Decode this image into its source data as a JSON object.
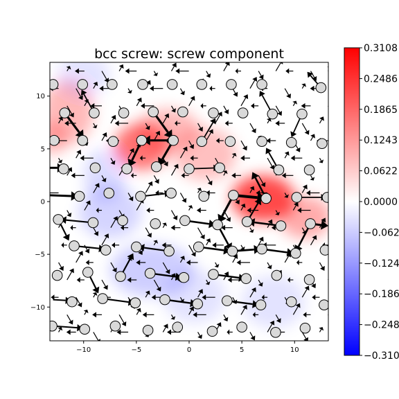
{
  "chart_data": {
    "type": "heatmap",
    "title": "bcc screw: screw component",
    "xlabel": "",
    "ylabel": "",
    "xlim": [
      -13.2,
      13.2
    ],
    "ylim": [
      -13.2,
      13.2
    ],
    "xticks": [
      {
        "value": -10,
        "label": "−10"
      },
      {
        "value": -5,
        "label": "−5"
      },
      {
        "value": 0,
        "label": "0"
      },
      {
        "value": 5,
        "label": "5"
      },
      {
        "value": 10,
        "label": "10"
      }
    ],
    "yticks": [
      {
        "value": -10,
        "label": "−10"
      },
      {
        "value": -5,
        "label": "−5"
      },
      {
        "value": 0,
        "label": "0"
      },
      {
        "value": 5,
        "label": "5"
      },
      {
        "value": 10,
        "label": "10"
      }
    ],
    "colormap": "bwr",
    "colors": {
      "low": "#0000ff",
      "mid": "#ffffff",
      "high": "#ff0000"
    },
    "colorbar": {
      "range": [
        -0.3108,
        0.3108
      ],
      "ticks": [
        {
          "value": 0.3108,
          "label": "0.3108"
        },
        {
          "value": 0.2486,
          "label": "0.2486"
        },
        {
          "value": 0.1865,
          "label": "0.1865"
        },
        {
          "value": 0.1243,
          "label": "0.1243"
        },
        {
          "value": 0.0622,
          "label": "0.0622"
        },
        {
          "value": 0.0,
          "label": "0.0000"
        },
        {
          "value": -0.0622,
          "label": "−0.0622"
        },
        {
          "value": -0.1243,
          "label": "−0.1243"
        },
        {
          "value": -0.1865,
          "label": "−0.1865"
        },
        {
          "value": -0.2486,
          "label": "−0.2486"
        },
        {
          "value": -0.3108,
          "label": "−0.3108"
        }
      ]
    },
    "field_blobs": [
      {
        "x": -4.5,
        "y": 5.2,
        "amp": 0.2,
        "sx": 2.6,
        "sy": 2.2
      },
      {
        "x": -2.0,
        "y": 6.8,
        "amp": 0.1,
        "sx": 3.0,
        "sy": 2.0
      },
      {
        "x": 7.0,
        "y": 0.3,
        "amp": 0.26,
        "sx": 3.0,
        "sy": 2.2
      },
      {
        "x": 11.0,
        "y": -1.5,
        "amp": 0.12,
        "sx": 2.5,
        "sy": 2.0
      },
      {
        "x": 1.5,
        "y": 4.5,
        "amp": 0.09,
        "sx": 3.0,
        "sy": 2.5
      },
      {
        "x": -11.5,
        "y": 8.5,
        "amp": 0.1,
        "sx": 2.5,
        "sy": 3.0
      },
      {
        "x": -13.0,
        "y": 6.0,
        "amp": 0.1,
        "sx": 1.5,
        "sy": 1.5
      },
      {
        "x": -7.5,
        "y": -1.0,
        "amp": -0.06,
        "sx": 3.0,
        "sy": 2.5
      },
      {
        "x": -3.5,
        "y": -6.5,
        "amp": -0.07,
        "sx": 4.0,
        "sy": 2.5
      },
      {
        "x": -8.0,
        "y": 2.5,
        "amp": -0.05,
        "sx": 2.0,
        "sy": 2.5
      },
      {
        "x": 0.5,
        "y": -9.0,
        "amp": -0.04,
        "sx": 3.0,
        "sy": 2.5
      },
      {
        "x": 8.0,
        "y": -9.5,
        "amp": -0.04,
        "sx": 3.0,
        "sy": 2.5
      },
      {
        "x": -10.0,
        "y": 12.0,
        "amp": -0.04,
        "sx": 2.5,
        "sy": 2.0
      }
    ],
    "atoms": [
      {
        "x": -12.9,
        "y": 11.1
      },
      {
        "x": -10.1,
        "y": 11.1
      },
      {
        "x": -7.3,
        "y": 11.1
      },
      {
        "x": -4.4,
        "y": 11.1
      },
      {
        "x": -1.6,
        "y": 11.1
      },
      {
        "x": 1.2,
        "y": 11.1
      },
      {
        "x": 4.0,
        "y": 11.1
      },
      {
        "x": 6.9,
        "y": 11.1
      },
      {
        "x": 12.5,
        "y": 10.8
      },
      {
        "x": -11.8,
        "y": 8.4
      },
      {
        "x": -9.0,
        "y": 8.4
      },
      {
        "x": -6.2,
        "y": 8.4
      },
      {
        "x": -3.4,
        "y": 8.5
      },
      {
        "x": -0.6,
        "y": 8.5
      },
      {
        "x": 2.3,
        "y": 8.4
      },
      {
        "x": 5.1,
        "y": 8.4
      },
      {
        "x": 7.9,
        "y": 8.3
      },
      {
        "x": 10.7,
        "y": 8.3
      },
      {
        "x": -12.8,
        "y": 5.8
      },
      {
        "x": -10.1,
        "y": 5.8
      },
      {
        "x": -7.2,
        "y": 5.7
      },
      {
        "x": -4.5,
        "y": 5.8
      },
      {
        "x": -1.5,
        "y": 5.8
      },
      {
        "x": 1.2,
        "y": 5.7
      },
      {
        "x": 3.9,
        "y": 5.7
      },
      {
        "x": 6.9,
        "y": 5.7
      },
      {
        "x": 9.7,
        "y": 5.6
      },
      {
        "x": 12.6,
        "y": 5.5
      },
      {
        "x": -11.9,
        "y": 3.1
      },
      {
        "x": -8.9,
        "y": 3.2
      },
      {
        "x": -5.9,
        "y": 3.1
      },
      {
        "x": -3.1,
        "y": 3.3
      },
      {
        "x": 0.0,
        "y": 3.1
      },
      {
        "x": 2.9,
        "y": 3.2
      },
      {
        "x": 8.5,
        "y": 3.0
      },
      {
        "x": 11.4,
        "y": 3.0
      },
      {
        "x": -10.4,
        "y": 0.5
      },
      {
        "x": -7.6,
        "y": 0.8
      },
      {
        "x": -4.6,
        "y": 0.5
      },
      {
        "x": -1.7,
        "y": 0.8
      },
      {
        "x": 1.4,
        "y": 0.5
      },
      {
        "x": 4.2,
        "y": 0.6
      },
      {
        "x": 7.3,
        "y": 0.3
      },
      {
        "x": 10.2,
        "y": 0.4
      },
      {
        "x": 13.1,
        "y": 0.4
      },
      {
        "x": -12.4,
        "y": -1.7
      },
      {
        "x": -9.1,
        "y": -2.0
      },
      {
        "x": -6.3,
        "y": -1.8
      },
      {
        "x": -3.2,
        "y": -2.1
      },
      {
        "x": -0.4,
        "y": -1.8
      },
      {
        "x": 2.7,
        "y": -2.2
      },
      {
        "x": 5.5,
        "y": -1.9
      },
      {
        "x": 8.7,
        "y": -2.3
      },
      {
        "x": 11.5,
        "y": -2.1
      },
      {
        "x": -10.9,
        "y": -4.2
      },
      {
        "x": -7.9,
        "y": -4.6
      },
      {
        "x": -5.0,
        "y": -4.3
      },
      {
        "x": -1.9,
        "y": -4.7
      },
      {
        "x": 0.9,
        "y": -4.3
      },
      {
        "x": 4.1,
        "y": -4.7
      },
      {
        "x": 6.9,
        "y": -4.5
      },
      {
        "x": 10.1,
        "y": -4.9
      },
      {
        "x": 12.9,
        "y": -4.6
      },
      {
        "x": -12.5,
        "y": -7.0
      },
      {
        "x": -9.6,
        "y": -6.7
      },
      {
        "x": -6.5,
        "y": -7.1
      },
      {
        "x": -3.7,
        "y": -6.8
      },
      {
        "x": -0.5,
        "y": -7.2
      },
      {
        "x": 2.3,
        "y": -6.9
      },
      {
        "x": 5.4,
        "y": -7.3
      },
      {
        "x": 8.3,
        "y": -7.0
      },
      {
        "x": 11.4,
        "y": -7.4
      },
      {
        "x": -11.1,
        "y": -9.5
      },
      {
        "x": -8.2,
        "y": -9.2
      },
      {
        "x": -5.1,
        "y": -9.6
      },
      {
        "x": -2.3,
        "y": -9.3
      },
      {
        "x": 0.8,
        "y": -9.7
      },
      {
        "x": 3.6,
        "y": -9.4
      },
      {
        "x": 6.8,
        "y": -9.8
      },
      {
        "x": 9.7,
        "y": -9.5
      },
      {
        "x": 12.8,
        "y": -9.8
      },
      {
        "x": -13.0,
        "y": -11.8
      },
      {
        "x": -9.9,
        "y": -12.1
      },
      {
        "x": -7.0,
        "y": -11.8
      },
      {
        "x": -3.9,
        "y": -12.2
      },
      {
        "x": -1.1,
        "y": -11.9
      },
      {
        "x": 2.2,
        "y": -12.3
      },
      {
        "x": 5.0,
        "y": -11.9
      },
      {
        "x": 8.2,
        "y": -12.4
      },
      {
        "x": 11.0,
        "y": -12.0
      }
    ],
    "arrows": [
      {
        "x": -11.8,
        "y": 8.4,
        "dx": 1.8,
        "dy": -2.4,
        "w": 3.2
      },
      {
        "x": -3.4,
        "y": 8.5,
        "dx": 1.8,
        "dy": -2.5,
        "w": 3.2
      },
      {
        "x": -1.5,
        "y": 5.8,
        "dx": -2.9,
        "dy": 0,
        "w": 3.2
      },
      {
        "x": -1.5,
        "y": 5.8,
        "dx": -1.4,
        "dy": -2.4,
        "w": 3.2
      },
      {
        "x": -4.5,
        "y": 5.8,
        "dx": -1.2,
        "dy": -2.5,
        "w": 3.0
      },
      {
        "x": 4.2,
        "y": 0.6,
        "dx": 3.1,
        "dy": -0.3,
        "w": 4.0
      },
      {
        "x": 7.3,
        "y": 0.3,
        "dx": -1.3,
        "dy": 2.5,
        "w": 2.6
      },
      {
        "x": 4.2,
        "y": 0.6,
        "dx": -1.4,
        "dy": -2.6,
        "w": 3.2
      },
      {
        "x": 2.7,
        "y": -2.2,
        "dx": 1.3,
        "dy": -2.4,
        "w": 2.6
      },
      {
        "x": 11.5,
        "y": -2.1,
        "dx": -1.4,
        "dy": -2.7,
        "w": 2.6
      },
      {
        "x": 11.5,
        "y": -2.1,
        "dx": 1.7,
        "dy": -0.2,
        "w": 3.0
      },
      {
        "x": -13.2,
        "y": 3.2,
        "dx": 1.3,
        "dy": 0,
        "w": 3.0
      },
      {
        "x": -13.2,
        "y": 0.6,
        "dx": 2.7,
        "dy": -0.1,
        "w": 3.0
      },
      {
        "x": 4.1,
        "y": -4.7,
        "dx": 2.7,
        "dy": 0.2,
        "w": 2.8
      },
      {
        "x": 8.7,
        "y": -2.3,
        "dx": -3.1,
        "dy": 0.4,
        "w": 2.6
      },
      {
        "x": -0.4,
        "y": -1.8,
        "dx": 2.9,
        "dy": -0.4,
        "w": 2.6
      },
      {
        "x": 0.9,
        "y": -4.3,
        "dx": 3.0,
        "dy": -0.4,
        "w": 2.6
      },
      {
        "x": 6.9,
        "y": -4.5,
        "dx": 3.0,
        "dy": -0.4,
        "w": 2.6
      },
      {
        "x": -3.7,
        "y": -6.8,
        "dx": 3.0,
        "dy": -0.4,
        "w": 2.4
      },
      {
        "x": 2.3,
        "y": -6.9,
        "dx": 3.0,
        "dy": -0.4,
        "w": 2.4
      },
      {
        "x": -2.3,
        "y": -9.3,
        "dx": 3.0,
        "dy": -0.4,
        "w": 2.4
      },
      {
        "x": 3.6,
        "y": -9.4,
        "dx": 3.0,
        "dy": -0.4,
        "w": 2.4
      },
      {
        "x": -8.2,
        "y": -9.2,
        "dx": 3.0,
        "dy": -0.4,
        "w": 2.2
      },
      {
        "x": -9.1,
        "y": -2.0,
        "dx": -3.1,
        "dy": 0.3,
        "w": 2.2
      },
      {
        "x": -10.9,
        "y": -4.2,
        "dx": 2.9,
        "dy": -0.3,
        "w": 2.2
      },
      {
        "x": -1.9,
        "y": -4.7,
        "dx": -2.9,
        "dy": 0.4,
        "w": 2.2
      },
      {
        "x": -12.9,
        "y": -9.3,
        "dx": 1.7,
        "dy": -0.1,
        "w": 2.0
      },
      {
        "x": -12.9,
        "y": -11.8,
        "dx": 2.8,
        "dy": -0.2,
        "w": 2.0
      },
      {
        "x": -4.5,
        "y": 0.5,
        "dx": 2.7,
        "dy": 0.3,
        "w": 2.0
      },
      {
        "x": -0.1,
        "y": 3.1,
        "dx": 2.9,
        "dy": 0.1,
        "w": 1.8
      },
      {
        "x": 10.2,
        "y": 0.4,
        "dx": 2.8,
        "dy": 0.0,
        "w": 1.8
      },
      {
        "x": -12.4,
        "y": -1.7,
        "dx": 1.0,
        "dy": -2.0,
        "w": 2.2
      },
      {
        "x": -9.6,
        "y": -6.7,
        "dx": 1.0,
        "dy": -2.0,
        "w": 2.2
      },
      {
        "x": -6.5,
        "y": -7.1,
        "dx": 1.2,
        "dy": 2.2,
        "w": 2.2
      },
      {
        "x": 5.5,
        "y": -1.9,
        "dx": 1.3,
        "dy": 2.2,
        "w": 2.2
      },
      {
        "x": 8.5,
        "y": 3.0,
        "dx": -1.2,
        "dy": 2.1,
        "w": 2.0
      },
      {
        "x": 1.2,
        "y": 5.7,
        "dx": 1.3,
        "dy": 2.2,
        "w": 1.8
      },
      {
        "x": -9.0,
        "y": 8.4,
        "dx": -1.2,
        "dy": 2.2,
        "w": 1.8
      },
      {
        "x": 7.9,
        "y": 8.3,
        "dx": -1.2,
        "dy": 2.2,
        "w": 1.8
      },
      {
        "x": 10.7,
        "y": 8.3,
        "dx": -1.0,
        "dy": -2.2,
        "w": 1.8
      },
      {
        "x": 12.5,
        "y": 10.8,
        "dx": -1.3,
        "dy": 1.5,
        "w": 1.8
      }
    ]
  }
}
